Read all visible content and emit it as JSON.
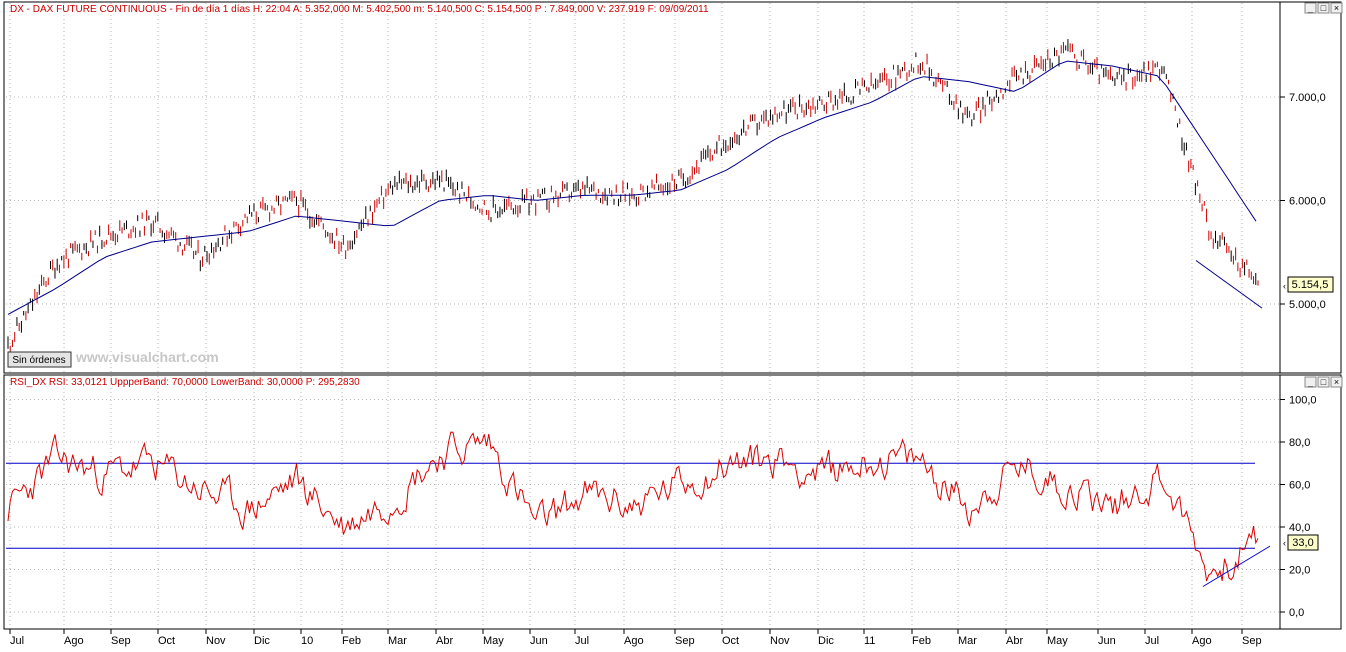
{
  "window_buttons": [
    "_",
    "□",
    "×"
  ],
  "price_panel": {
    "header": "DX - DAX FUTURE CONTINUOUS - Fin de día 1 días  H: 22:04  A: 5.352,000  M: 5.402,500  m: 5.140,500  C: 5.154,500  P : 7.849,000  V: 237.919  F: 09/09/2011",
    "y_ticks": [
      "7.000,0",
      "6.000,0",
      "5.000,0"
    ],
    "last_value": "5.154,5",
    "status_button": "Sin órdenes",
    "watermark": "www.visualchart.com"
  },
  "rsi_panel": {
    "header": "RSI_DX  RSI: 33,0121  UppperBand: 70,0000  LowerBand: 30,0000  P: 295,2830",
    "y_ticks": [
      "100,0",
      "80,0",
      "60,0",
      "40,0",
      "20,0",
      "0,0"
    ],
    "last_value": "33,0"
  },
  "x_ticks": [
    "Jul",
    "Ago",
    "Sep",
    "Oct",
    "Nov",
    "Dic",
    "10",
    "Feb",
    "Mar",
    "Abr",
    "May",
    "Jun",
    "Jul",
    "Ago",
    "Sep",
    "Oct",
    "Nov",
    "Dic",
    "11",
    "Feb",
    "Mar",
    "Abr",
    "May",
    "Jun",
    "Jul",
    "Ago",
    "Sep"
  ],
  "colors": {
    "price_bars": "#cc0000",
    "moving_average": "#00008b",
    "rsi_line": "#dd0000",
    "bands": "#0000cc",
    "last_value_box": "#ffffcc",
    "header_text": "#cc0000"
  },
  "chart_data": [
    {
      "type": "line",
      "title": "DX - DAX FUTURE CONTINUOUS",
      "x_range": [
        "2009-07",
        "2011-09-09"
      ],
      "ylim": [
        4300,
        7900
      ],
      "grid": true,
      "series": [
        {
          "name": "DX",
          "style": "ohlc-bars",
          "x": [
            "2009-07",
            "2009-08",
            "2009-09",
            "2009-10",
            "2009-11",
            "2009-12",
            "2010-01",
            "2010-02",
            "2010-03",
            "2010-04",
            "2010-05",
            "2010-06",
            "2010-07",
            "2010-08",
            "2010-09",
            "2010-10",
            "2010-11",
            "2010-12",
            "2011-01",
            "2011-02",
            "2011-03",
            "2011-04",
            "2011-05",
            "2011-06",
            "2011-07",
            "2011-08",
            "2011-09"
          ],
          "values": [
            4600,
            5400,
            5650,
            5800,
            5450,
            5850,
            6000,
            5550,
            6150,
            6200,
            5900,
            6000,
            6100,
            6050,
            6200,
            6600,
            6850,
            6950,
            7100,
            7350,
            6800,
            7200,
            7450,
            7150,
            7300,
            5700,
            5200
          ]
        },
        {
          "name": "Moving average",
          "values": [
            4900,
            5150,
            5450,
            5600,
            5650,
            5700,
            5850,
            5800,
            5750,
            6000,
            6050,
            6000,
            6050,
            6050,
            6100,
            6300,
            6600,
            6800,
            6950,
            7200,
            7150,
            7050,
            7350,
            7300,
            7200,
            6500,
            5800
          ]
        },
        {
          "name": "Trend line",
          "values": [
            5420,
            4960
          ]
        }
      ]
    },
    {
      "type": "line",
      "title": "RSI_DX",
      "ylim": [
        -10,
        105
      ],
      "grid": true,
      "upper_band": 70,
      "lower_band": 30,
      "series": [
        {
          "name": "RSI",
          "values": [
            48,
            72,
            65,
            70,
            58,
            48,
            62,
            40,
            55,
            75,
            80,
            40,
            55,
            50,
            60,
            70,
            72,
            65,
            72,
            70,
            50,
            68,
            60,
            50,
            65,
            18,
            33
          ]
        },
        {
          "name": "Trend line",
          "values": [
            12,
            31
          ]
        }
      ]
    }
  ]
}
